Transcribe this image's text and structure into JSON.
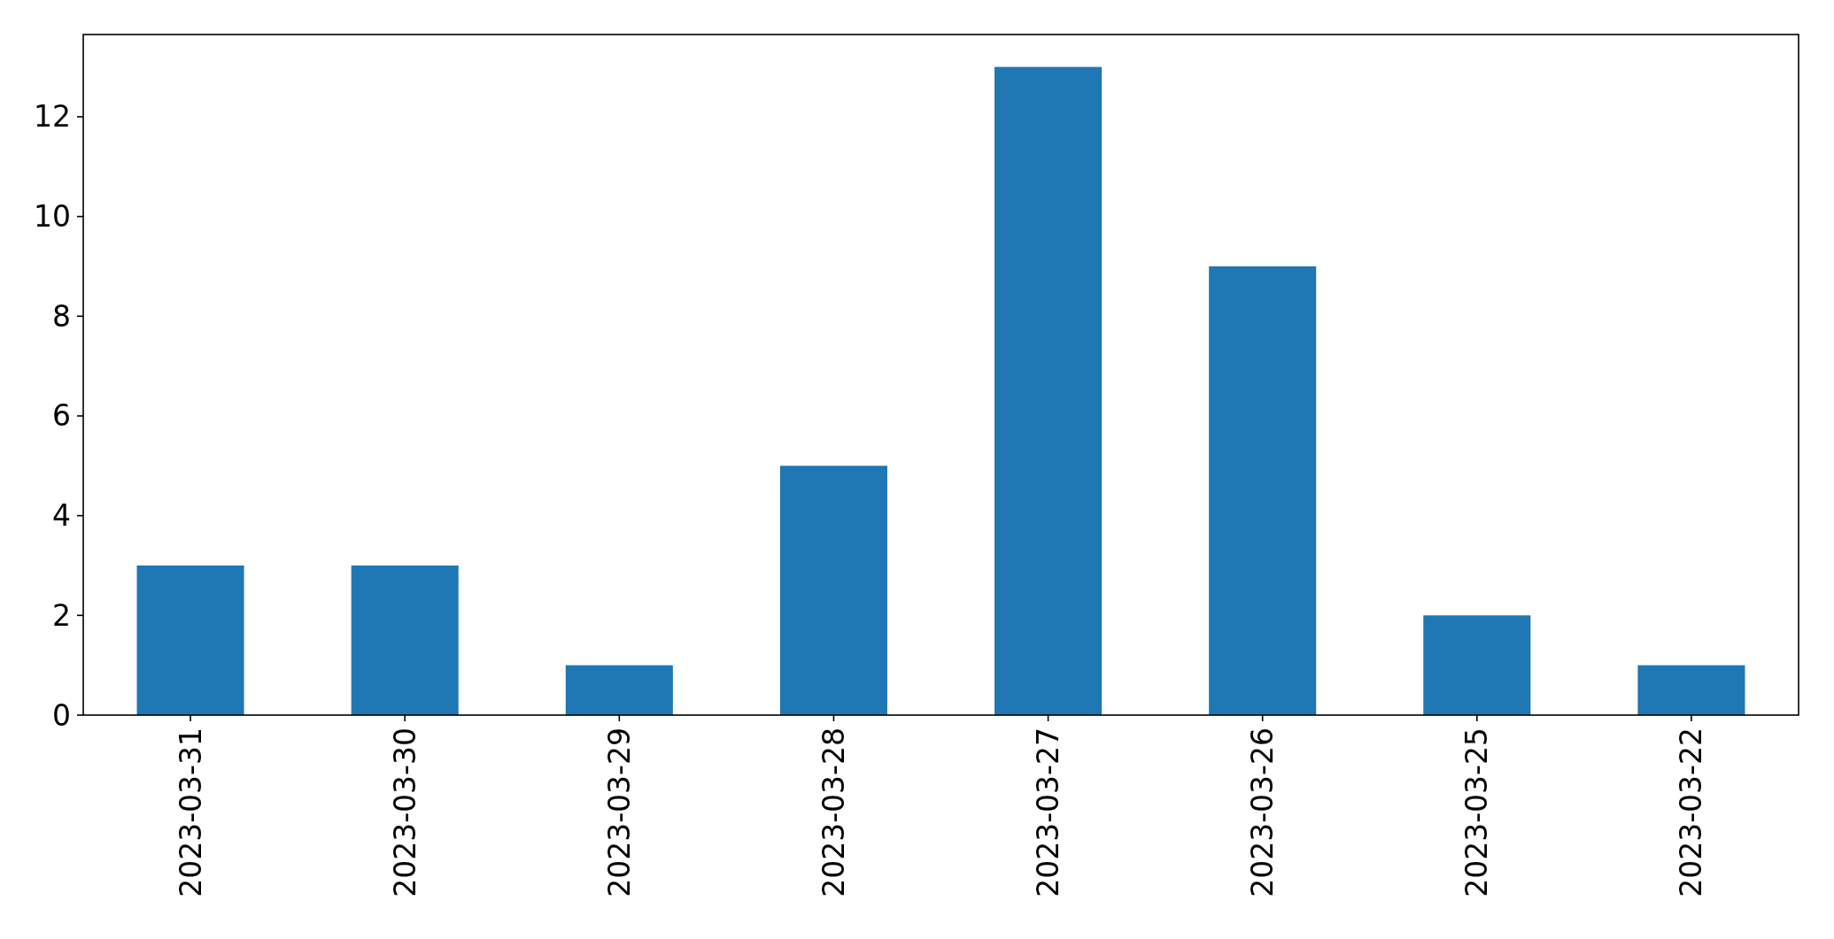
{
  "chart_data": {
    "type": "bar",
    "categories": [
      "2023-03-31",
      "2023-03-30",
      "2023-03-29",
      "2023-03-28",
      "2023-03-27",
      "2023-03-26",
      "2023-03-25",
      "2023-03-22"
    ],
    "values": [
      3,
      3,
      1,
      5,
      13,
      9,
      2,
      1
    ],
    "color": "#1f77b4",
    "ylim": [
      0,
      13.65
    ],
    "yticks": [
      0,
      2,
      4,
      6,
      8,
      10,
      12
    ],
    "grid": false
  }
}
